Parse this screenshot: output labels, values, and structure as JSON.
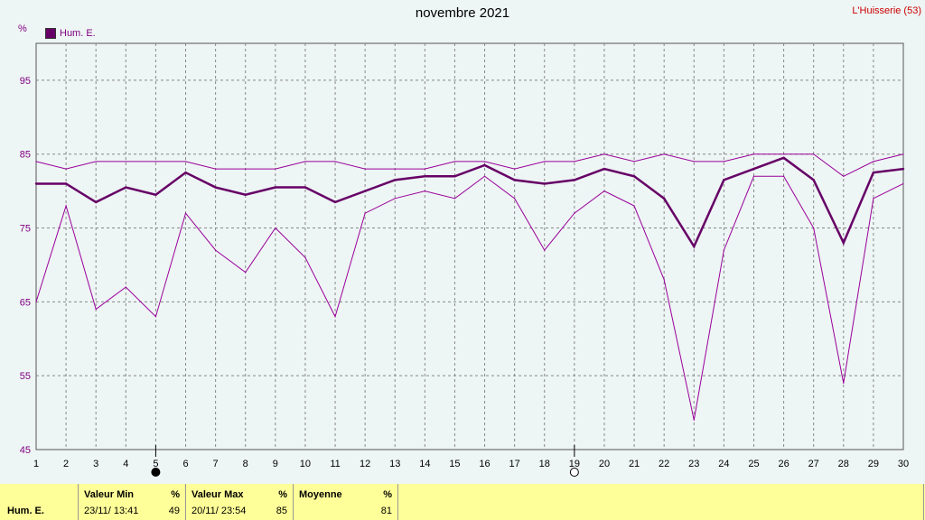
{
  "title": "novembre 2021",
  "station": "L'Huisserie (53)",
  "unit": "%",
  "legend_label": "Hum. E.",
  "colors": {
    "main": "#660066",
    "envelope": "#990099",
    "axis_text": "#800080",
    "grid": "#888888"
  },
  "markers": [
    {
      "day": 5,
      "kind": "new-moon"
    },
    {
      "day": 19,
      "kind": "full-moon"
    }
  ],
  "chart_data": {
    "type": "line",
    "title": "novembre 2021",
    "ylabel": "%",
    "ylim": [
      45,
      100
    ],
    "yticks": [
      45,
      55,
      65,
      75,
      85,
      95
    ],
    "x": [
      1,
      2,
      3,
      4,
      5,
      6,
      7,
      8,
      9,
      10,
      11,
      12,
      13,
      14,
      15,
      16,
      17,
      18,
      19,
      20,
      21,
      22,
      23,
      24,
      25,
      26,
      27,
      28,
      29,
      30
    ],
    "grid": true,
    "legend": "top-left",
    "series": [
      {
        "name": "Hum. E.",
        "role": "mean",
        "values": [
          81,
          81,
          78.5,
          80.5,
          79.5,
          82.5,
          80.5,
          79.5,
          80.5,
          80.5,
          78.5,
          80,
          81.5,
          82,
          82,
          83.5,
          81.5,
          81,
          81.5,
          83,
          82,
          79,
          72.5,
          81.5,
          83,
          84.5,
          81.5,
          73,
          82.5,
          83
        ]
      },
      {
        "role": "max",
        "values": [
          84,
          83,
          84,
          84,
          84,
          84,
          83,
          83,
          83,
          84,
          84,
          83,
          83,
          83,
          84,
          84,
          83,
          84,
          84,
          85,
          84,
          85,
          84,
          84,
          85,
          85,
          85,
          82,
          84,
          85
        ]
      },
      {
        "role": "min",
        "values": [
          65,
          78,
          64,
          67,
          63,
          77,
          72,
          69,
          75,
          71,
          63,
          77,
          79,
          80,
          79,
          82,
          79,
          72,
          77,
          80,
          78,
          68,
          49,
          72,
          82,
          82,
          75,
          54,
          79,
          81
        ]
      }
    ]
  },
  "footer": {
    "row_label": "Hum. E.",
    "min": {
      "label": "Valeur Min",
      "unit": "%",
      "date": "23/11/  13:41",
      "value": "49"
    },
    "max": {
      "label": "Valeur Max",
      "unit": "%",
      "date": "20/11/  23:54",
      "value": "85"
    },
    "mean": {
      "label": "Moyenne",
      "unit": "%",
      "value": "81"
    }
  }
}
